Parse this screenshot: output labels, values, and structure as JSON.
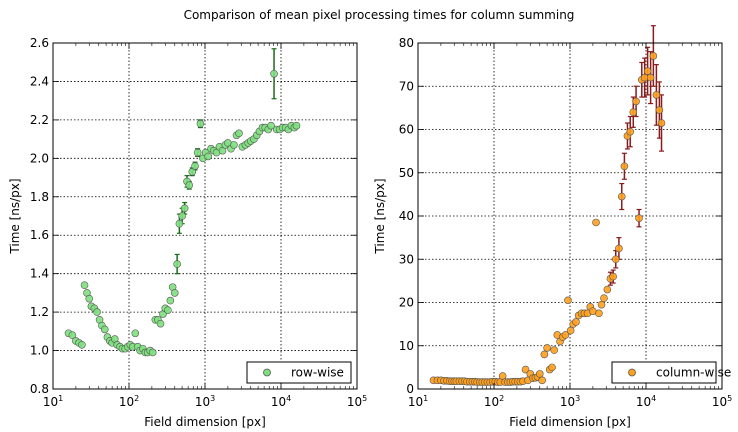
{
  "figure": {
    "title": "Comparison of mean pixel processing times for column summing"
  },
  "chart_data": [
    {
      "type": "scatter",
      "xlabel": "Field dimension [px]",
      "ylabel": "Time [ns/px]",
      "xscale": "log",
      "xlim": [
        10,
        100000
      ],
      "ylim": [
        0.8,
        2.6
      ],
      "xticks": [
        10,
        100,
        1000,
        10000,
        100000
      ],
      "yticks": [
        0.8,
        1.0,
        1.2,
        1.4,
        1.6,
        1.8,
        2.0,
        2.2,
        2.4,
        2.6
      ],
      "yticklabels": [
        "0.8",
        "1.0",
        "1.2",
        "1.4",
        "1.6",
        "1.8",
        "2.0",
        "2.2",
        "2.4",
        "2.6"
      ],
      "grid": true,
      "legend_position": "bottom-right",
      "marker_color": "#7de07d",
      "errorbar_color": "#1a6b1a",
      "series": [
        {
          "name": "row-wise",
          "x": [
            16,
            18,
            20,
            22,
            24,
            26,
            28,
            30,
            32,
            35,
            38,
            41,
            44,
            48,
            52,
            56,
            60,
            65,
            70,
            76,
            82,
            89,
            96,
            104,
            112,
            121,
            130,
            140,
            152,
            164,
            176,
            190,
            205,
            222,
            240,
            260,
            280,
            300,
            325,
            350,
            375,
            400,
            430,
            460,
            500,
            540,
            580,
            620,
            680,
            740,
            800,
            870,
            940,
            1020,
            1100,
            1200,
            1300,
            1420,
            1550,
            1700,
            1850,
            2000,
            2200,
            2400,
            2600,
            2800,
            3100,
            3400,
            3700,
            4000,
            4400,
            4800,
            5200,
            5700,
            6200,
            6800,
            7400,
            8100,
            8800,
            9600,
            10500,
            11500,
            12500,
            13700,
            15000,
            16000
          ],
          "y": [
            1.09,
            1.08,
            1.05,
            1.04,
            1.03,
            1.34,
            1.3,
            1.27,
            1.23,
            1.22,
            1.2,
            1.16,
            1.13,
            1.11,
            1.07,
            1.05,
            1.04,
            1.06,
            1.03,
            1.02,
            1.01,
            1.01,
            1.02,
            1.03,
            1.02,
            1.09,
            1.02,
            1.0,
            1.01,
            0.99,
            0.99,
            1.0,
            0.99,
            1.16,
            1.16,
            1.14,
            1.19,
            1.22,
            1.21,
            1.26,
            1.33,
            1.3,
            1.45,
            1.66,
            1.7,
            1.74,
            1.88,
            1.86,
            1.93,
            1.96,
            2.03,
            2.18,
            2.0,
            2.03,
            2.01,
            2.05,
            2.04,
            2.03,
            2.06,
            2.04,
            2.07,
            2.08,
            2.05,
            2.07,
            2.12,
            2.13,
            2.06,
            2.07,
            2.08,
            2.09,
            2.1,
            2.12,
            2.14,
            2.16,
            2.16,
            2.15,
            2.17,
            2.44,
            2.15,
            2.15,
            2.16,
            2.16,
            2.15,
            2.17,
            2.16,
            2.17
          ],
          "yerr": [
            0,
            0,
            0,
            0,
            0,
            0,
            0,
            0,
            0,
            0,
            0,
            0,
            0,
            0,
            0,
            0,
            0,
            0,
            0,
            0,
            0,
            0,
            0,
            0,
            0,
            0,
            0,
            0,
            0,
            0,
            0,
            0,
            0,
            0,
            0,
            0,
            0,
            0,
            0,
            0,
            0,
            0,
            0.05,
            0.05,
            0.04,
            0.03,
            0.03,
            0.02,
            0.02,
            0.02,
            0.02,
            0.02,
            0,
            0,
            0,
            0,
            0,
            0,
            0,
            0,
            0,
            0,
            0,
            0,
            0,
            0,
            0,
            0,
            0,
            0,
            0,
            0,
            0,
            0,
            0,
            0,
            0,
            0.13,
            0,
            0,
            0,
            0,
            0,
            0,
            0,
            0
          ]
        }
      ]
    },
    {
      "type": "scatter",
      "xlabel": "Field dimension [px]",
      "ylabel": "Time [ns/px]",
      "xscale": "log",
      "xlim": [
        10,
        100000
      ],
      "ylim": [
        0,
        80
      ],
      "xticks": [
        10,
        100,
        1000,
        10000,
        100000
      ],
      "yticks": [
        0,
        10,
        20,
        30,
        40,
        50,
        60,
        70,
        80
      ],
      "yticklabels": [
        "0",
        "10",
        "20",
        "30",
        "40",
        "50",
        "60",
        "70",
        "80"
      ],
      "grid": true,
      "legend_position": "bottom-right",
      "marker_color": "#ff9f1c",
      "errorbar_color": "#8b1a1a",
      "series": [
        {
          "name": "column-wise",
          "x": [
            16,
            18,
            20,
            22,
            24,
            26,
            28,
            30,
            32,
            35,
            38,
            41,
            44,
            48,
            52,
            56,
            60,
            65,
            70,
            76,
            82,
            89,
            96,
            104,
            112,
            121,
            130,
            140,
            152,
            164,
            176,
            190,
            205,
            222,
            240,
            260,
            280,
            300,
            325,
            350,
            375,
            400,
            430,
            460,
            500,
            540,
            580,
            620,
            680,
            740,
            800,
            870,
            940,
            1020,
            1100,
            1200,
            1300,
            1420,
            1550,
            1700,
            1850,
            2000,
            2200,
            2400,
            2600,
            2800,
            3100,
            3400,
            3700,
            4000,
            4400,
            4800,
            5200,
            5700,
            6200,
            6800,
            7400,
            8100,
            8800,
            9600,
            10500,
            11500,
            12500,
            13700,
            15000,
            16000
          ],
          "y": [
            2.0,
            2.0,
            2.0,
            1.9,
            1.9,
            1.8,
            1.8,
            1.8,
            1.8,
            1.8,
            1.8,
            1.8,
            1.7,
            1.7,
            1.7,
            1.7,
            1.6,
            1.6,
            1.6,
            1.6,
            1.6,
            1.6,
            1.7,
            1.7,
            1.6,
            1.6,
            3.0,
            1.6,
            1.6,
            1.6,
            1.7,
            1.7,
            1.7,
            1.7,
            1.8,
            4.5,
            2.0,
            3.5,
            2.5,
            2.6,
            2.8,
            3.5,
            2.0,
            8.0,
            9.5,
            4.5,
            5.0,
            9.0,
            12.5,
            11.0,
            12.0,
            12.5,
            20.5,
            13.5,
            15.0,
            15.5,
            17.0,
            17.5,
            17.5,
            17.5,
            19.0,
            18.0,
            38.5,
            17.5,
            19.5,
            21.0,
            23.0,
            25.5,
            26.0,
            30.0,
            32.5,
            44.5,
            51.5,
            58.5,
            59.5,
            64.0,
            66.5,
            39.5,
            71.5,
            72.0,
            73.5,
            72.0,
            77.0,
            68.0,
            64.5,
            61.5
          ],
          "yerr": [
            0,
            0,
            0,
            0,
            0,
            0,
            0,
            0,
            0,
            0,
            0,
            0,
            0,
            0,
            0,
            0,
            0,
            0,
            0,
            0,
            0,
            0,
            0,
            0,
            0,
            0,
            0,
            0,
            0,
            0,
            0,
            0,
            0,
            0,
            0,
            0,
            0,
            0,
            0,
            0,
            0,
            0,
            0,
            0,
            0,
            0,
            0,
            0,
            0,
            0,
            0,
            0,
            0,
            0,
            0,
            0,
            0,
            0,
            0,
            0,
            0,
            0,
            0,
            0,
            0,
            0,
            0,
            1.5,
            1.5,
            2.0,
            2.5,
            3.0,
            3.0,
            3.0,
            3.5,
            3.5,
            3.5,
            2.0,
            4.0,
            4.5,
            5.5,
            6.0,
            7.0,
            7.0,
            6.5,
            6.5
          ]
        }
      ]
    }
  ]
}
